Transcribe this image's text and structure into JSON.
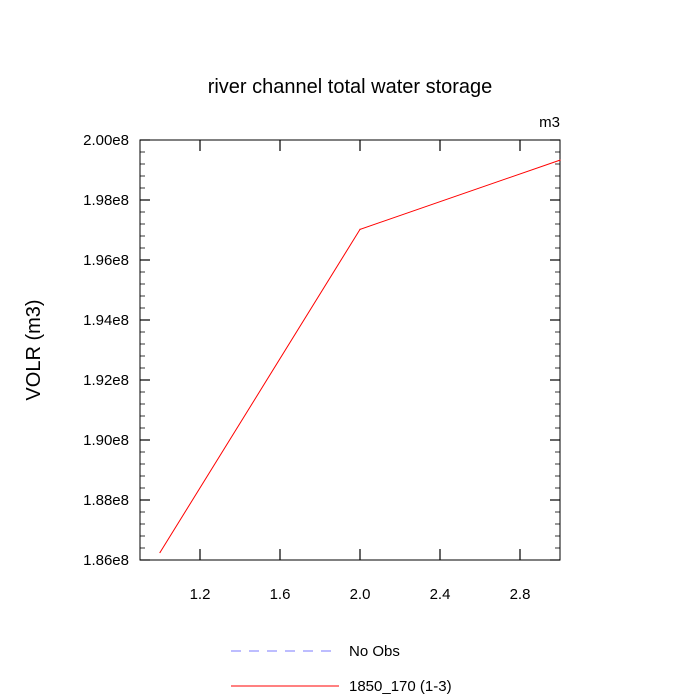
{
  "chart_data": {
    "type": "line",
    "title": "river channel total water storage",
    "units_label": "m3",
    "xlabel": "",
    "ylabel": "VOLR  (m3)",
    "xlim": [
      0.9,
      3.0
    ],
    "ylim": [
      186000000,
      200000000
    ],
    "x_ticks": [
      1.2,
      1.6,
      2.0,
      2.4,
      2.8
    ],
    "x_tick_labels": [
      "1.2",
      "1.6",
      "2.0",
      "2.4",
      "2.8"
    ],
    "y_ticks": [
      186000000,
      188000000,
      190000000,
      192000000,
      194000000,
      196000000,
      198000000,
      200000000
    ],
    "y_tick_labels": [
      "1.86e8",
      "1.88e8",
      "1.90e8",
      "1.92e8",
      "1.94e8",
      "1.96e8",
      "1.98e8",
      "2.00e8"
    ],
    "grid": false,
    "legend_position": "bottom",
    "series": [
      {
        "name": "No Obs",
        "color": "#7b7bff",
        "dash": "dashed",
        "x": [],
        "y": []
      },
      {
        "name": "1850_170 (1-3)",
        "color": "#ff0000",
        "dash": "solid",
        "x": [
          1.0,
          2.0,
          3.0
        ],
        "y": [
          186250000,
          197020000,
          199330000
        ]
      }
    ]
  }
}
